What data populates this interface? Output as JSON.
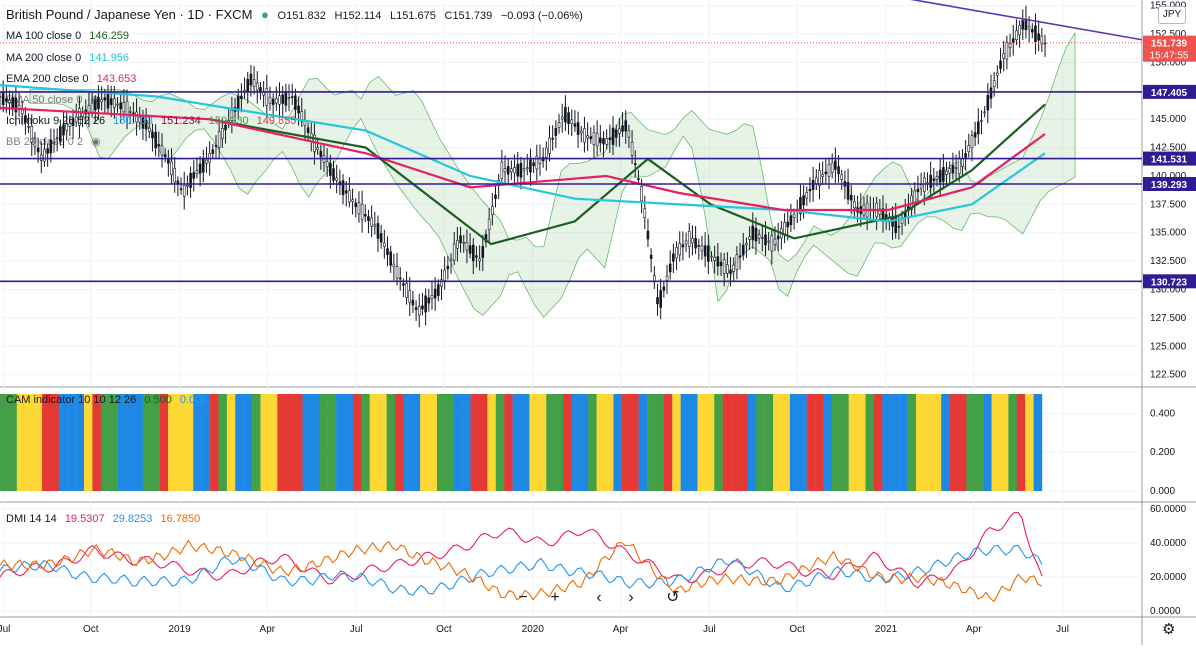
{
  "header": {
    "symbol": "British Pound / Japanese Yen · 1D · FXCM",
    "ohlc": {
      "o": "O151.832",
      "h": "H152.114",
      "l": "L151.675",
      "c": "C151.739",
      "chg": "−0.093 (−0.06%)"
    }
  },
  "indicators": [
    {
      "label": "MA 100 close 0",
      "value": "146.259",
      "color": "#131722"
    },
    {
      "label": "MA 200 close 0",
      "value": "141.956",
      "color": "#26c6da"
    },
    {
      "label": "EMA 200 close 0",
      "value": "143.653",
      "color": "#e91e63"
    },
    {
      "label": "EMA 50 close 0",
      "value": "",
      "color": "#131722"
    },
    {
      "label": "Ichimoku 9 26 52 26",
      "values": [
        "150.733",
        "151.234",
        "150.230",
        "149.855"
      ],
      "colors": [
        "#2196f3",
        "#880e4f",
        "#43a047",
        "#e53935"
      ]
    },
    {
      "label": "BB 20 close 0 2",
      "value": "",
      "color": "#131722"
    }
  ],
  "currency_button": "JPY",
  "chart_data": [
    {
      "type": "candlestick",
      "title": "British Pound / Japanese Yen · 1D · FXCM",
      "ylim": [
        121.5,
        155.5
      ],
      "y_ticks": [
        "155.000",
        "152.500",
        "150.000",
        "147.500",
        "145.000",
        "142.500",
        "140.000",
        "137.500",
        "135.000",
        "132.500",
        "130.000",
        "127.500",
        "125.000",
        "122.500"
      ],
      "x_ticks": [
        "Jul",
        "Oct",
        "2019",
        "Apr",
        "Jul",
        "Oct",
        "2020",
        "Apr",
        "Jul",
        "Oct",
        "2021",
        "Apr",
        "Jul"
      ],
      "horizontal_levels": [
        {
          "label": "147.405",
          "value": 147.405
        },
        {
          "label": "141.531",
          "value": 141.531
        },
        {
          "label": "139.293",
          "value": 139.293
        },
        {
          "label": "130.723",
          "value": 130.723
        }
      ],
      "trendline": {
        "from": [
          0.72,
          158.0
        ],
        "to": [
          1.0,
          152.0
        ]
      },
      "last_price": {
        "label": "151.739",
        "value": 151.739,
        "countdown": "15:47:55"
      },
      "price_path": [
        [
          0.0,
          147.0
        ],
        [
          0.02,
          146.0
        ],
        [
          0.04,
          141.5
        ],
        [
          0.06,
          144.0
        ],
        [
          0.08,
          145.5
        ],
        [
          0.1,
          146.8
        ],
        [
          0.12,
          146.0
        ],
        [
          0.14,
          144.5
        ],
        [
          0.16,
          141.5
        ],
        [
          0.175,
          138.5
        ],
        [
          0.185,
          140.0
        ],
        [
          0.2,
          141.5
        ],
        [
          0.22,
          145.0
        ],
        [
          0.24,
          148.5
        ],
        [
          0.26,
          146.5
        ],
        [
          0.28,
          147.0
        ],
        [
          0.3,
          143.0
        ],
        [
          0.32,
          140.0
        ],
        [
          0.34,
          137.5
        ],
        [
          0.36,
          135.5
        ],
        [
          0.38,
          131.5
        ],
        [
          0.4,
          128.0
        ],
        [
          0.42,
          130.0
        ],
        [
          0.44,
          134.5
        ],
        [
          0.46,
          132.5
        ],
        [
          0.48,
          140.5
        ],
        [
          0.5,
          140.5
        ],
        [
          0.52,
          141.5
        ],
        [
          0.54,
          145.5
        ],
        [
          0.56,
          143.5
        ],
        [
          0.58,
          143.0
        ],
        [
          0.6,
          144.5
        ],
        [
          0.615,
          138.0
        ],
        [
          0.63,
          128.5
        ],
        [
          0.645,
          133.0
        ],
        [
          0.66,
          134.5
        ],
        [
          0.68,
          133.0
        ],
        [
          0.7,
          131.5
        ],
        [
          0.72,
          135.0
        ],
        [
          0.74,
          134.0
        ],
        [
          0.76,
          136.5
        ],
        [
          0.78,
          139.5
        ],
        [
          0.8,
          141.0
        ],
        [
          0.82,
          137.0
        ],
        [
          0.84,
          137.0
        ],
        [
          0.86,
          135.5
        ],
        [
          0.88,
          139.0
        ],
        [
          0.9,
          140.0
        ],
        [
          0.92,
          141.0
        ],
        [
          0.94,
          145.0
        ],
        [
          0.96,
          150.5
        ],
        [
          0.98,
          153.5
        ],
        [
          1.0,
          151.7
        ]
      ],
      "ma_paths": [
        {
          "name": "MA 100 close 0",
          "color": "#1b5e20",
          "points": [
            [
              0.2,
              145.0
            ],
            [
              0.35,
              142.5
            ],
            [
              0.47,
              134.0
            ],
            [
              0.55,
              136.0
            ],
            [
              0.62,
              141.5
            ],
            [
              0.68,
              137.5
            ],
            [
              0.76,
              134.5
            ],
            [
              0.86,
              136.5
            ],
            [
              0.93,
              140.5
            ],
            [
              1.0,
              146.3
            ]
          ]
        },
        {
          "name": "MA 200 close 0",
          "color": "#26c6da",
          "points": [
            [
              0.0,
              148.0
            ],
            [
              0.15,
              147.0
            ],
            [
              0.35,
              144.0
            ],
            [
              0.45,
              140.0
            ],
            [
              0.55,
              138.0
            ],
            [
              0.65,
              137.5
            ],
            [
              0.75,
              137.0
            ],
            [
              0.85,
              136.0
            ],
            [
              0.93,
              137.5
            ],
            [
              1.0,
              142.0
            ]
          ]
        },
        {
          "name": "EMA 200 close 0",
          "color": "#e91e63",
          "points": [
            [
              0.0,
              146.0
            ],
            [
              0.2,
              145.0
            ],
            [
              0.35,
              142.0
            ],
            [
              0.45,
              139.0
            ],
            [
              0.58,
              140.0
            ],
            [
              0.65,
              138.5
            ],
            [
              0.75,
              137.0
            ],
            [
              0.85,
              137.0
            ],
            [
              0.93,
              139.0
            ],
            [
              1.0,
              143.7
            ]
          ]
        }
      ]
    },
    {
      "type": "bar",
      "title": "CAM indicator 10 10 12 26",
      "legend": [
        "0.500",
        "0.000"
      ],
      "ylim": [
        0,
        0.5
      ],
      "y_ticks": [
        "0.400",
        "0.200",
        "0.000"
      ],
      "colors": [
        "#1e88e5",
        "#43a047",
        "#fdd835",
        "#e53935"
      ],
      "color_names": [
        "blue",
        "green",
        "yellow",
        "red"
      ],
      "pattern": "1122233000231100011322200312001223330011003122130022110033213002211300122033011320022133301122003301122130001222033110221320"
    },
    {
      "type": "line",
      "title": "DMI 14 14",
      "ylim": [
        0,
        60
      ],
      "y_ticks": [
        "60.0000",
        "40.0000",
        "20.0000",
        "0.0000"
      ],
      "series": [
        {
          "name": "19.5307",
          "color": "#e91e63",
          "points": [
            [
              0.0,
              20
            ],
            [
              0.05,
              25
            ],
            [
              0.09,
              38
            ],
            [
              0.13,
              28
            ],
            [
              0.18,
              25
            ],
            [
              0.22,
              22
            ],
            [
              0.27,
              30
            ],
            [
              0.32,
              20
            ],
            [
              0.38,
              25
            ],
            [
              0.42,
              35
            ],
            [
              0.48,
              45
            ],
            [
              0.52,
              40
            ],
            [
              0.56,
              50
            ],
            [
              0.6,
              32
            ],
            [
              0.65,
              20
            ],
            [
              0.7,
              25
            ],
            [
              0.75,
              28
            ],
            [
              0.8,
              22
            ],
            [
              0.84,
              30
            ],
            [
              0.88,
              18
            ],
            [
              0.92,
              25
            ],
            [
              0.95,
              45
            ],
            [
              0.98,
              57
            ],
            [
              1.0,
              19.5
            ]
          ]
        },
        {
          "name": "29.8253",
          "color": "#2196f3",
          "points": [
            [
              0.0,
              22
            ],
            [
              0.05,
              28
            ],
            [
              0.09,
              20
            ],
            [
              0.13,
              15
            ],
            [
              0.18,
              20
            ],
            [
              0.22,
              30
            ],
            [
              0.27,
              18
            ],
            [
              0.32,
              22
            ],
            [
              0.38,
              12
            ],
            [
              0.42,
              15
            ],
            [
              0.48,
              22
            ],
            [
              0.52,
              30
            ],
            [
              0.56,
              22
            ],
            [
              0.6,
              15
            ],
            [
              0.65,
              20
            ],
            [
              0.7,
              28
            ],
            [
              0.75,
              15
            ],
            [
              0.8,
              22
            ],
            [
              0.84,
              18
            ],
            [
              0.88,
              25
            ],
            [
              0.92,
              30
            ],
            [
              0.95,
              35
            ],
            [
              0.98,
              38
            ],
            [
              1.0,
              29.8
            ]
          ]
        },
        {
          "name": "16.7850",
          "color": "#ef6c00",
          "points": [
            [
              0.0,
              25
            ],
            [
              0.05,
              30
            ],
            [
              0.09,
              35
            ],
            [
              0.13,
              28
            ],
            [
              0.18,
              40
            ],
            [
              0.22,
              32
            ],
            [
              0.27,
              25
            ],
            [
              0.32,
              30
            ],
            [
              0.38,
              40
            ],
            [
              0.42,
              28
            ],
            [
              0.48,
              10
            ],
            [
              0.52,
              12
            ],
            [
              0.56,
              15
            ],
            [
              0.6,
              42
            ],
            [
              0.65,
              12
            ],
            [
              0.7,
              18
            ],
            [
              0.75,
              20
            ],
            [
              0.8,
              30
            ],
            [
              0.84,
              22
            ],
            [
              0.88,
              20
            ],
            [
              0.92,
              12
            ],
            [
              0.95,
              8
            ],
            [
              0.98,
              22
            ],
            [
              1.0,
              16.8
            ]
          ]
        }
      ]
    }
  ],
  "controls": [
    "−",
    "+",
    "‹",
    "›",
    "↺"
  ],
  "settings_icon": "gear-icon"
}
